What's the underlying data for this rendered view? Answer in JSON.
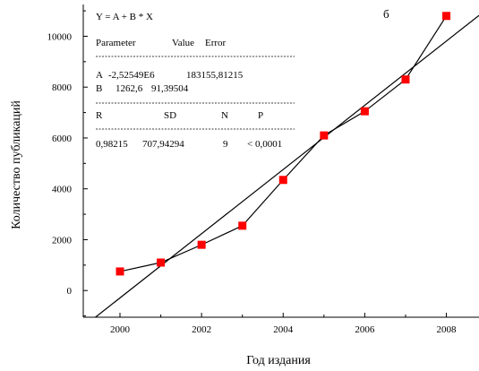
{
  "chart_data": {
    "type": "scatter",
    "panel_label": "б",
    "xlabel": "Год издания",
    "ylabel": "Количество публикаций",
    "xlim": [
      1999.1,
      2008.8
    ],
    "ylim": [
      -1050,
      11250
    ],
    "x_ticks": [
      2000,
      2002,
      2004,
      2006,
      2008
    ],
    "x_ticklabels": [
      "2000",
      "2002",
      "2004",
      "2006",
      "2008"
    ],
    "y_ticks": [
      0,
      2000,
      4000,
      6000,
      8000,
      10000
    ],
    "y_ticklabels": [
      "0",
      "2000",
      "4000",
      "6000",
      "8000",
      "10000"
    ],
    "grid": false,
    "series": [
      {
        "x": [
          2000,
          2001,
          2002,
          2003,
          2004,
          2005,
          2006,
          2007,
          2008
        ],
        "y": [
          750,
          1100,
          1800,
          2550,
          4350,
          6100,
          7050,
          8300,
          10800
        ],
        "color": "#ff0000",
        "marker": "square",
        "connected": true
      }
    ],
    "fit_line": {
      "intercept": -2525490,
      "slope": 1262.6,
      "color": "#000000"
    },
    "fit_box": {
      "equation": "Y = A + B * X",
      "header": [
        "Parameter",
        "Value",
        "Error"
      ],
      "rows": [
        [
          "A",
          "-2,52549E6",
          "183155,81215"
        ],
        [
          "B",
          "1262,6",
          "91,39504"
        ]
      ],
      "stats_header": [
        "R",
        "SD",
        "N",
        "P"
      ],
      "stats_values": [
        "0,98215",
        "707,94294",
        "9",
        "< 0,0001"
      ]
    }
  }
}
